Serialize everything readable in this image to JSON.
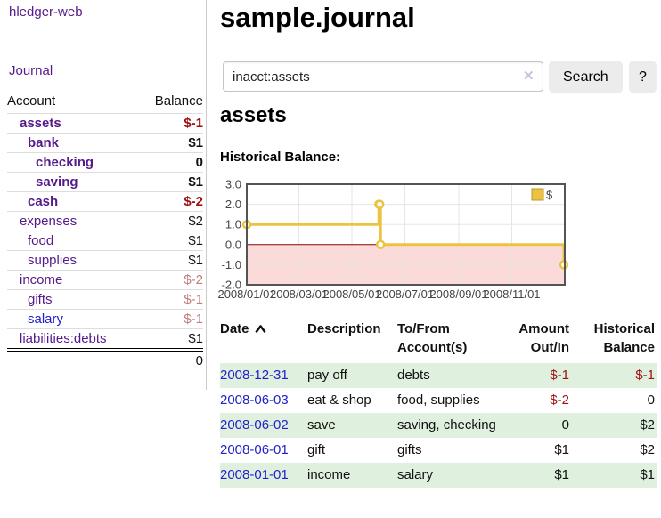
{
  "app_title": "hledger-web",
  "sidebar": {
    "journal_link": "Journal",
    "table": {
      "account_header": "Account",
      "balance_header": "Balance",
      "rows": [
        {
          "label": "assets",
          "balance": "$-1",
          "depth": 0,
          "bold": true,
          "label_color": "purple",
          "balance_style": "neg-strong"
        },
        {
          "label": "bank",
          "balance": "$1",
          "depth": 1,
          "bold": true,
          "label_color": "purple",
          "balance_style": "pos"
        },
        {
          "label": "checking",
          "balance": "0",
          "depth": 2,
          "bold": true,
          "label_color": "purple",
          "balance_style": "pos"
        },
        {
          "label": "saving",
          "balance": "$1",
          "depth": 2,
          "bold": true,
          "label_color": "purple",
          "balance_style": "pos"
        },
        {
          "label": "cash",
          "balance": "$-2",
          "depth": 1,
          "bold": true,
          "label_color": "purple",
          "balance_style": "neg-strong"
        },
        {
          "label": "expenses",
          "balance": "$2",
          "depth": 0,
          "bold": false,
          "label_color": "purple",
          "balance_style": "pos"
        },
        {
          "label": "food",
          "balance": "$1",
          "depth": 1,
          "bold": false,
          "label_color": "purple",
          "balance_style": "pos"
        },
        {
          "label": "supplies",
          "balance": "$1",
          "depth": 1,
          "bold": false,
          "label_color": "purple",
          "balance_style": "pos"
        },
        {
          "label": "income",
          "balance": "$-2",
          "depth": 0,
          "bold": false,
          "label_color": "purple",
          "balance_style": "rose"
        },
        {
          "label": "gifts",
          "balance": "$-1",
          "depth": 1,
          "bold": false,
          "label_color": "purple",
          "balance_style": "rose"
        },
        {
          "label": "salary",
          "balance": "$-1",
          "depth": 1,
          "bold": false,
          "label_color": "blue",
          "balance_style": "rose"
        },
        {
          "label": "liabilities:debts",
          "balance": "$1",
          "depth": 0,
          "bold": false,
          "label_color": "purple",
          "balance_style": "pos"
        }
      ],
      "total": "0"
    }
  },
  "main": {
    "title": "sample.journal",
    "search": {
      "value": "inacct:assets",
      "clear_icon": "✕",
      "button_label": "Search",
      "help_label": "?"
    },
    "account_heading": "assets"
  },
  "chart_data": {
    "type": "line",
    "title": "Historical Balance:",
    "series": [
      {
        "name": "$",
        "color": "#edc240",
        "steps": true,
        "points": [
          [
            "2008-01-01",
            1
          ],
          [
            "2008-06-01",
            2
          ],
          [
            "2008-06-02",
            2
          ],
          [
            "2008-06-03",
            0
          ],
          [
            "2008-12-31",
            -1
          ]
        ]
      }
    ],
    "x_range": [
      "2008-01-01",
      "2009-01-01"
    ],
    "ylim": [
      -2,
      3
    ],
    "y_ticks": [
      "3.0",
      "2.0",
      "1.0",
      "0.0",
      "-1.0",
      "-2.0"
    ],
    "x_ticks": [
      "2008/01/01",
      "2008/03/01",
      "2008/05/01",
      "2008/07/01",
      "2008/09/01",
      "2008/11/01"
    ],
    "grid": true,
    "legend_position": "top-right",
    "zero_line_color": "#8b0000",
    "negative_region_color": "#fbdada",
    "grid_color": "#e5e5e5",
    "border_color": "#545454",
    "tick_label_color": "#444444"
  },
  "register_table": {
    "headers": {
      "date": "Date",
      "description": "Description",
      "accounts": "To/From Account(s)",
      "amount": "Amount Out/In",
      "balance": "Historical Balance"
    },
    "sort": "ascending",
    "rows": [
      {
        "date": "2008-12-31",
        "description": "pay off",
        "accounts": "debts",
        "amount": "$-1",
        "amount_negative": true,
        "balance": "$-1",
        "balance_negative": true,
        "shaded": true
      },
      {
        "date": "2008-06-03",
        "description": "eat & shop",
        "accounts": "food, supplies",
        "amount": "$-2",
        "amount_negative": true,
        "balance": "0",
        "balance_negative": false,
        "shaded": false
      },
      {
        "date": "2008-06-02",
        "description": "save",
        "accounts": "saving, checking",
        "amount": "0",
        "amount_negative": false,
        "balance": "$2",
        "balance_negative": false,
        "shaded": true
      },
      {
        "date": "2008-06-01",
        "description": "gift",
        "accounts": "gifts",
        "amount": "$1",
        "amount_negative": false,
        "balance": "$2",
        "balance_negative": false,
        "shaded": false
      },
      {
        "date": "2008-01-01",
        "description": "income",
        "accounts": "salary",
        "amount": "$1",
        "amount_negative": false,
        "balance": "$1",
        "balance_negative": false,
        "shaded": true
      }
    ]
  },
  "colors": {
    "accent_purple": "#551a8b",
    "link_blue": "#2222cc",
    "negative_strong": "#9d1111",
    "negative_muted": "#bf7d7d",
    "row_stripe_green": "#dff0df",
    "chart_series_gold": "#edc240",
    "button_gray": "#ececec"
  }
}
